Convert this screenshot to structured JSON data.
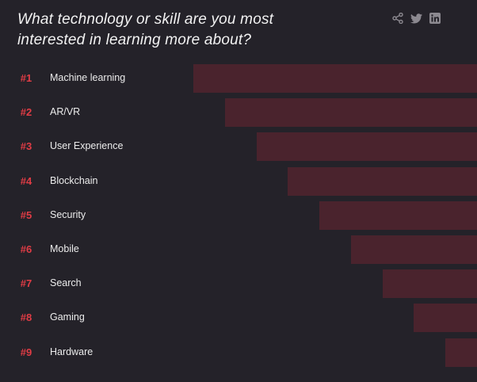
{
  "title": "What technology or skill are you most interested in learning more about?",
  "share_icons": [
    "share-icon",
    "twitter-icon",
    "linkedin-icon"
  ],
  "colors": {
    "background": "#242229",
    "bar": "#4a232d",
    "rank": "#e03c45",
    "text": "#ececec",
    "icon": "#8c8990"
  },
  "chart_data": {
    "type": "bar",
    "orientation": "horizontal",
    "title": "What technology or skill are you most interested in learning more about?",
    "ranks": [
      "#1",
      "#2",
      "#3",
      "#4",
      "#5",
      "#6",
      "#7",
      "#8",
      "#9"
    ],
    "categories": [
      "Machine learning",
      "AR/VR",
      "User Experience",
      "Blockchain",
      "Security",
      "Mobile",
      "Search",
      "Gaming",
      "Hardware"
    ],
    "values": [
      9,
      8,
      7,
      6,
      5,
      4,
      3,
      2,
      1
    ],
    "axes_shown": false,
    "grid": false
  }
}
